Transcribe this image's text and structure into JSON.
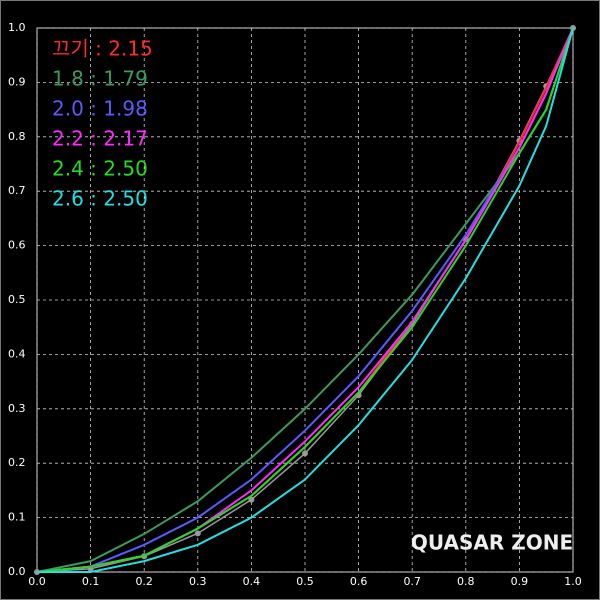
{
  "chart_data": {
    "type": "line",
    "x": [
      0,
      0.1,
      0.2,
      0.3,
      0.4,
      0.5,
      0.6,
      0.7,
      0.8,
      0.9,
      0.95,
      1
    ],
    "series": [
      {
        "color": "#9a9a9a",
        "markers": true,
        "values": [
          0,
          0.006,
          0.029,
          0.071,
          0.133,
          0.218,
          0.325,
          0.456,
          0.612,
          0.793,
          0.893,
          1
        ]
      },
      {
        "name": "끄기 : 2.15",
        "color": "#ff2a2a",
        "values": [
          0,
          0.01,
          0.03,
          0.08,
          0.14,
          0.23,
          0.33,
          0.46,
          0.61,
          0.79,
          0.89,
          1
        ]
      },
      {
        "name": "1.8 : 1.79",
        "color": "#3c9a5c",
        "values": [
          0,
          0.02,
          0.07,
          0.13,
          0.21,
          0.3,
          0.4,
          0.51,
          0.64,
          0.77,
          0.85,
          1
        ]
      },
      {
        "name": "2.0 : 1.98",
        "color": "#5a5aff",
        "values": [
          0,
          0.01,
          0.05,
          0.1,
          0.17,
          0.26,
          0.36,
          0.48,
          0.62,
          0.78,
          0.88,
          1
        ]
      },
      {
        "name": "2.2 : 2.17",
        "color": "#ff2aff",
        "values": [
          0,
          0.01,
          0.03,
          0.08,
          0.15,
          0.24,
          0.34,
          0.46,
          0.61,
          0.78,
          0.88,
          1
        ]
      },
      {
        "name": "2.4 : 2.50",
        "color": "#22dd22",
        "values": [
          0,
          0.01,
          0.03,
          0.08,
          0.14,
          0.23,
          0.33,
          0.45,
          0.6,
          0.77,
          0.85,
          1
        ]
      },
      {
        "name": "2.6 : 2.50",
        "color": "#22e0e0",
        "values": [
          0,
          0,
          0.02,
          0.05,
          0.1,
          0.17,
          0.27,
          0.39,
          0.54,
          0.71,
          0.82,
          1
        ]
      }
    ],
    "xlim": [
      0,
      1
    ],
    "ylim": [
      0,
      1
    ],
    "xticks": [
      {
        "value": 0,
        "label": "0.0"
      },
      0.1,
      0.2,
      0.3,
      0.4,
      0.5,
      0.6,
      0.7,
      0.8,
      0.9,
      {
        "value": 1,
        "label": "1.0"
      }
    ],
    "yticks": [
      {
        "value": 0,
        "label": "0.0"
      },
      0.1,
      0.2,
      0.3,
      0.4,
      0.5,
      0.6,
      0.7,
      0.8,
      0.9,
      {
        "value": 1,
        "label": "1.0"
      }
    ],
    "grid": true,
    "legend": "upper left",
    "watermark": "QUASAR ZONE"
  }
}
